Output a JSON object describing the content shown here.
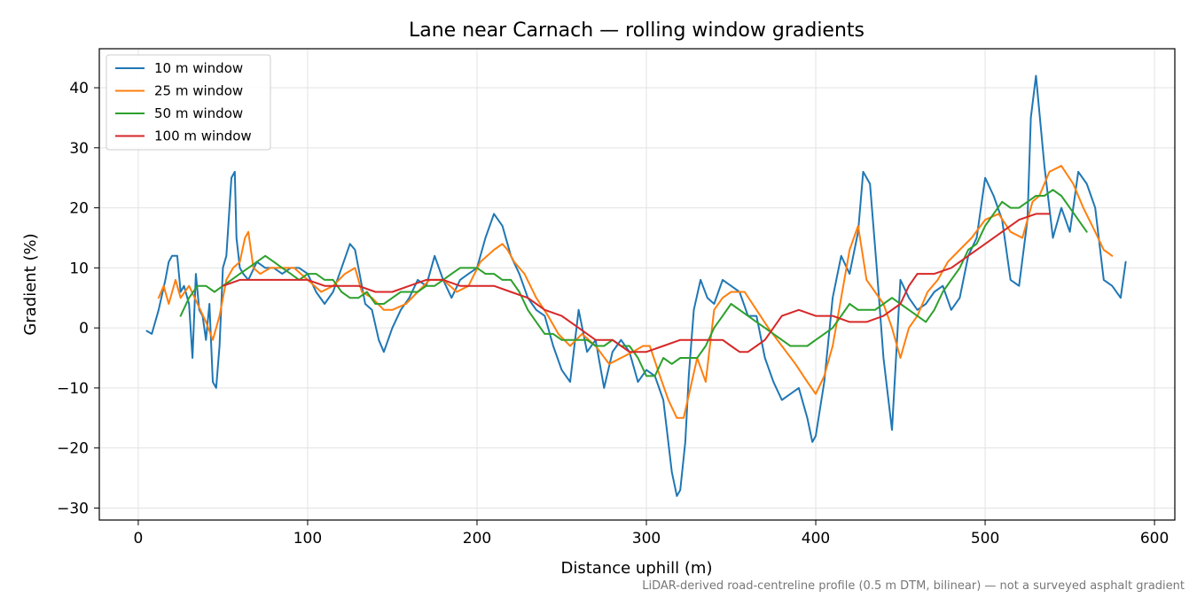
{
  "chart_data": {
    "type": "line",
    "title": "Lane near Carnach — rolling window gradients",
    "xlabel": "Distance uphill (m)",
    "ylabel": "Gradient (%)",
    "xlim": [
      -23,
      612
    ],
    "ylim": [
      -32,
      46.5
    ],
    "xticks": [
      0,
      100,
      200,
      300,
      400,
      500,
      600
    ],
    "xtick_labels": [
      "0",
      "100",
      "200",
      "300",
      "400",
      "500",
      "600"
    ],
    "yticks": [
      -30,
      -20,
      -10,
      0,
      10,
      20,
      30,
      40
    ],
    "ytick_labels": [
      "−30",
      "−20",
      "−10",
      "0",
      "10",
      "20",
      "30",
      "40"
    ],
    "grid": true,
    "legend_position": "top-left",
    "footnote": "LiDAR-derived road-centreline profile (0.5 m DTM, bilinear) — not a surveyed asphalt gradient",
    "series": [
      {
        "name": "10 m window",
        "color": "#1f77b4",
        "x": [
          5,
          8,
          12,
          16,
          18,
          20,
          23,
          25,
          27,
          30,
          32,
          34,
          36,
          38,
          40,
          42,
          44,
          46,
          48,
          50,
          52,
          55,
          57,
          58,
          60,
          62,
          65,
          70,
          75,
          80,
          85,
          90,
          95,
          100,
          105,
          110,
          115,
          120,
          125,
          128,
          130,
          134,
          138,
          142,
          145,
          150,
          155,
          160,
          165,
          170,
          175,
          180,
          185,
          190,
          195,
          200,
          205,
          210,
          215,
          220,
          225,
          230,
          235,
          240,
          245,
          250,
          255,
          260,
          265,
          270,
          275,
          280,
          285,
          290,
          295,
          300,
          305,
          310,
          315,
          318,
          320,
          323,
          325,
          328,
          332,
          336,
          340,
          345,
          350,
          355,
          360,
          365,
          370,
          375,
          380,
          385,
          390,
          395,
          398,
          400,
          405,
          410,
          415,
          420,
          425,
          428,
          432,
          436,
          440,
          445,
          450,
          455,
          460,
          465,
          470,
          475,
          480,
          485,
          490,
          495,
          500,
          505,
          510,
          515,
          520,
          525,
          527,
          530,
          535,
          540,
          545,
          550,
          555,
          560,
          565,
          570,
          575,
          580,
          583
        ],
        "values": [
          -0.5,
          -1,
          3,
          8,
          11,
          12,
          12,
          6,
          7,
          4,
          -5,
          9,
          3,
          2,
          -2,
          4,
          -9,
          -10,
          -3,
          10,
          12,
          25,
          26,
          15,
          10,
          9,
          8,
          11,
          10,
          10,
          9,
          10,
          10,
          9,
          6,
          4,
          6,
          10,
          14,
          13,
          10,
          4,
          3,
          -2,
          -4,
          0,
          3,
          5,
          8,
          7,
          12,
          8,
          5,
          8,
          9,
          10,
          15,
          19,
          17,
          12,
          9,
          5,
          3,
          2,
          -3,
          -7,
          -9,
          3,
          -4,
          -2,
          -10,
          -4,
          -2,
          -4,
          -9,
          -7,
          -8,
          -12,
          -24,
          -28,
          -27,
          -19,
          -8,
          3,
          8,
          5,
          4,
          8,
          7,
          6,
          2,
          2,
          -5,
          -9,
          -12,
          -11,
          -10,
          -15,
          -19,
          -18,
          -9,
          5,
          12,
          9,
          16,
          26,
          24,
          10,
          -5,
          -17,
          8,
          5,
          3,
          4,
          6,
          7,
          3,
          5,
          12,
          15,
          25,
          22,
          18,
          8,
          7,
          18,
          35,
          42,
          27,
          15,
          20,
          16,
          26,
          24,
          20,
          8,
          7,
          5,
          11
        ]
      },
      {
        "name": "25 m window",
        "color": "#ff7f0e",
        "x": [
          12,
          15,
          18,
          22,
          25,
          30,
          35,
          40,
          44,
          48,
          52,
          56,
          60,
          63,
          65,
          68,
          72,
          78,
          85,
          92,
          100,
          108,
          115,
          122,
          128,
          132,
          138,
          145,
          150,
          158,
          165,
          172,
          180,
          188,
          195,
          202,
          210,
          215,
          218,
          222,
          228,
          235,
          242,
          248,
          255,
          262,
          270,
          278,
          285,
          292,
          298,
          302,
          308,
          313,
          318,
          322,
          326,
          330,
          335,
          340,
          345,
          350,
          358,
          365,
          372,
          380,
          388,
          395,
          400,
          405,
          410,
          415,
          420,
          425,
          430,
          435,
          440,
          445,
          450,
          455,
          460,
          466,
          472,
          478,
          485,
          492,
          500,
          508,
          515,
          522,
          528,
          532,
          538,
          545,
          552,
          558,
          565,
          570,
          575
        ],
        "values": [
          5,
          7,
          4,
          8,
          5,
          7,
          4,
          1,
          -2,
          2,
          8,
          10,
          11,
          15,
          16,
          10,
          9,
          10,
          10,
          10,
          8,
          6,
          7,
          9,
          10,
          6,
          5,
          3,
          3,
          4,
          6,
          8,
          8,
          6,
          7,
          11,
          13,
          14,
          13,
          11,
          9,
          5,
          2,
          -1,
          -3,
          -1,
          -3,
          -6,
          -5,
          -4,
          -3,
          -3,
          -8,
          -12,
          -15,
          -15,
          -10,
          -5,
          -9,
          3,
          5,
          6,
          6,
          3,
          0,
          -3,
          -6,
          -9,
          -11,
          -8,
          -3,
          5,
          13,
          17,
          8,
          6,
          4,
          0,
          -5,
          0,
          2,
          6,
          8,
          11,
          13,
          15,
          18,
          19,
          16,
          15,
          21,
          22,
          26,
          27,
          24,
          20,
          16,
          13,
          12
        ]
      },
      {
        "name": "50 m window",
        "color": "#2ca02c",
        "x": [
          25,
          30,
          35,
          40,
          45,
          50,
          55,
          60,
          65,
          70,
          75,
          80,
          85,
          90,
          95,
          100,
          105,
          110,
          115,
          120,
          125,
          130,
          135,
          140,
          145,
          150,
          155,
          160,
          165,
          170,
          175,
          180,
          185,
          190,
          195,
          200,
          205,
          210,
          215,
          220,
          225,
          230,
          235,
          240,
          245,
          250,
          255,
          260,
          265,
          270,
          275,
          280,
          285,
          290,
          295,
          300,
          305,
          310,
          315,
          320,
          325,
          330,
          335,
          340,
          345,
          350,
          355,
          360,
          365,
          370,
          375,
          380,
          385,
          390,
          395,
          400,
          405,
          410,
          415,
          420,
          425,
          430,
          435,
          440,
          445,
          450,
          455,
          460,
          465,
          470,
          475,
          480,
          485,
          490,
          495,
          500,
          505,
          510,
          515,
          520,
          525,
          530,
          535,
          540,
          545,
          550,
          555,
          560
        ],
        "values": [
          2,
          5,
          7,
          7,
          6,
          7,
          8,
          9,
          10,
          11,
          12,
          11,
          10,
          9,
          8,
          9,
          9,
          8,
          8,
          6,
          5,
          5,
          6,
          4,
          4,
          5,
          6,
          6,
          6,
          7,
          7,
          8,
          9,
          10,
          10,
          10,
          9,
          9,
          8,
          8,
          6,
          3,
          1,
          -1,
          -1,
          -2,
          -2,
          -2,
          -2,
          -3,
          -3,
          -2,
          -3,
          -3,
          -5,
          -8,
          -8,
          -5,
          -6,
          -5,
          -5,
          -5,
          -3,
          0,
          2,
          4,
          3,
          2,
          1,
          0,
          -1,
          -2,
          -3,
          -3,
          -3,
          -2,
          -1,
          0,
          2,
          4,
          3,
          3,
          3,
          4,
          5,
          4,
          3,
          2,
          1,
          3,
          6,
          8,
          10,
          13,
          14,
          17,
          19,
          21,
          20,
          20,
          21,
          22,
          22,
          23,
          22,
          20,
          18,
          16
        ]
      },
      {
        "name": "100 m window",
        "color": "#d62728",
        "x": [
          50,
          60,
          70,
          80,
          90,
          100,
          110,
          120,
          130,
          140,
          150,
          160,
          170,
          180,
          190,
          200,
          210,
          220,
          230,
          240,
          250,
          260,
          270,
          280,
          290,
          300,
          310,
          320,
          330,
          340,
          345,
          350,
          355,
          360,
          365,
          370,
          375,
          380,
          390,
          400,
          410,
          420,
          430,
          440,
          450,
          455,
          460,
          470,
          480,
          490,
          500,
          510,
          520,
          530,
          538
        ],
        "values": [
          7,
          8,
          8,
          8,
          8,
          8,
          7,
          7,
          7,
          6,
          6,
          7,
          8,
          8,
          7,
          7,
          7,
          6,
          5,
          3,
          2,
          0,
          -2,
          -2,
          -4,
          -4,
          -3,
          -2,
          -2,
          -2,
          -2,
          -3,
          -4,
          -4,
          -3,
          -2,
          0,
          2,
          3,
          2,
          2,
          1,
          1,
          2,
          4,
          7,
          9,
          9,
          10,
          12,
          14,
          16,
          18,
          19,
          19
        ]
      }
    ]
  }
}
